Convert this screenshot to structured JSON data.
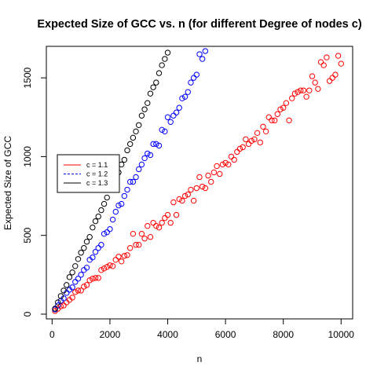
{
  "chart_data": {
    "type": "scatter",
    "title": "Expected Size of GCC vs. n (for different Degree of nodes c)",
    "xlabel": "n",
    "ylabel": "Expected Size of GCC",
    "xlim": [
      -200,
      10400
    ],
    "ylim": [
      -30,
      1700
    ],
    "x_ticks": [
      0,
      2000,
      4000,
      6000,
      8000,
      10000
    ],
    "x_tick_labels": [
      "0",
      "2000",
      "4000",
      "6000",
      "8000",
      "10000"
    ],
    "y_ticks": [
      0,
      500,
      1000,
      1500
    ],
    "y_tick_labels": [
      "0",
      "500",
      "1000",
      "1500"
    ],
    "grid": false,
    "legend_position": "left-middle",
    "marker": "open-circle",
    "series": [
      {
        "name": "c = 1.1",
        "color": "#ff0000",
        "line_style": "solid",
        "x": [
          100,
          200,
          300,
          400,
          500,
          600,
          700,
          800,
          900,
          1000,
          1100,
          1200,
          1300,
          1400,
          1500,
          1600,
          1700,
          1800,
          1900,
          2000,
          2100,
          2200,
          2300,
          2400,
          2500,
          2600,
          2700,
          2800,
          2900,
          3000,
          3100,
          3200,
          3300,
          3400,
          3500,
          3600,
          3700,
          3800,
          3900,
          4000,
          4100,
          4200,
          4300,
          4400,
          4500,
          4600,
          4700,
          4800,
          4900,
          5000,
          5100,
          5200,
          5300,
          5400,
          5500,
          5600,
          5700,
          5800,
          5900,
          6000,
          6100,
          6200,
          6300,
          6400,
          6500,
          6600,
          6700,
          6800,
          6900,
          7000,
          7100,
          7200,
          7300,
          7400,
          7500,
          7600,
          7700,
          7800,
          7900,
          8000,
          8100,
          8200,
          8300,
          8400,
          8500,
          8600,
          8700,
          8800,
          8900,
          9000,
          9100,
          9200,
          9300,
          9400,
          9500,
          9600,
          9700,
          9800,
          9900,
          10000
        ],
        "y": [
          20,
          35,
          50,
          55,
          75,
          90,
          105,
          140,
          150,
          150,
          175,
          185,
          215,
          225,
          230,
          230,
          280,
          290,
          300,
          310,
          305,
          345,
          365,
          335,
          370,
          375,
          420,
          510,
          440,
          440,
          510,
          480,
          560,
          490,
          580,
          560,
          550,
          580,
          610,
          630,
          580,
          710,
          630,
          730,
          720,
          750,
          760,
          790,
          720,
          800,
          870,
          810,
          800,
          880,
          840,
          900,
          940,
          890,
          950,
          960,
          950,
          1000,
          980,
          1030,
          1050,
          1060,
          1110,
          1080,
          1100,
          1110,
          1150,
          1090,
          1190,
          1160,
          1250,
          1230,
          1230,
          1270,
          1300,
          1310,
          1340,
          1230,
          1370,
          1400,
          1410,
          1420,
          1420,
          1380,
          1420,
          1510,
          1470,
          1430,
          1600,
          1580,
          1630,
          1480,
          1500,
          1520,
          1640,
          1590
        ]
      },
      {
        "name": "c = 1.2",
        "color": "#0000ff",
        "line_style": "dashed",
        "x": [
          100,
          200,
          300,
          400,
          500,
          600,
          700,
          800,
          900,
          1000,
          1100,
          1200,
          1300,
          1400,
          1500,
          1600,
          1700,
          1800,
          1900,
          2000,
          2100,
          2200,
          2300,
          2400,
          2500,
          2600,
          2700,
          2800,
          2900,
          3000,
          3100,
          3200,
          3300,
          3400,
          3500,
          3600,
          3700,
          3800,
          3900,
          4000,
          4100,
          4200,
          4300,
          4400,
          4500,
          4600,
          4700,
          4800,
          4900,
          5000,
          5100,
          5200,
          5300
        ],
        "y": [
          30,
          55,
          85,
          100,
          135,
          155,
          170,
          205,
          225,
          250,
          280,
          295,
          345,
          360,
          395,
          420,
          440,
          510,
          520,
          540,
          600,
          650,
          690,
          700,
          750,
          790,
          840,
          840,
          870,
          920,
          950,
          990,
          1020,
          1010,
          1080,
          1080,
          1070,
          1170,
          1160,
          1250,
          1220,
          1260,
          1280,
          1310,
          1370,
          1380,
          1410,
          1470,
          1500,
          1520,
          1650,
          1620,
          1670
        ]
      },
      {
        "name": "c = 1.3",
        "color": "#000000",
        "line_style": "solid",
        "x": [
          100,
          200,
          300,
          400,
          500,
          600,
          700,
          800,
          900,
          1000,
          1100,
          1200,
          1300,
          1400,
          1500,
          1600,
          1700,
          1800,
          1900,
          2000,
          2100,
          2200,
          2300,
          2400,
          2500,
          2600,
          2700,
          2800,
          2900,
          3000,
          3100,
          3200,
          3300,
          3400,
          3500,
          3600,
          3700,
          3800,
          3900,
          4000
        ],
        "y": [
          35,
          75,
          115,
          150,
          185,
          235,
          265,
          305,
          350,
          390,
          420,
          460,
          490,
          550,
          590,
          620,
          660,
          700,
          740,
          790,
          820,
          870,
          900,
          950,
          980,
          1040,
          1080,
          1120,
          1160,
          1200,
          1260,
          1300,
          1340,
          1400,
          1440,
          1470,
          1530,
          1580,
          1620,
          1660
        ]
      }
    ]
  }
}
